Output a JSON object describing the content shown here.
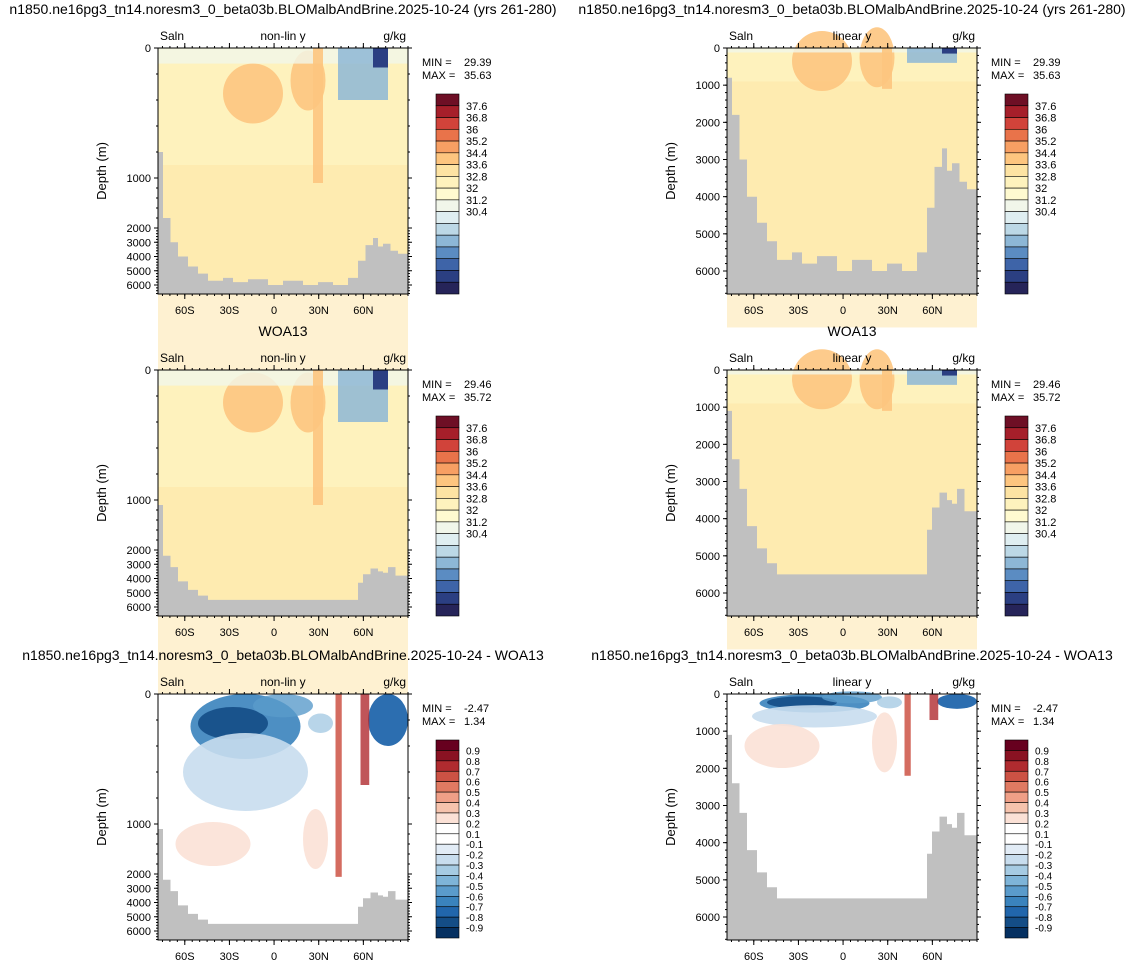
{
  "labels": {
    "depth_axis": "Depth (m)",
    "var": "Saln",
    "units": "g/kg",
    "nonlin": "non-lin y",
    "lin": "linear y",
    "min_prefix": "MIN =",
    "max_prefix": "MAX ="
  },
  "rows": [
    {
      "title_left": "n1850.ne16pg3_tn14.noresm3_0_beta03b.BLOMalbAndBrine.2025-10-24 (yrs 261-280)",
      "title_right": "n1850.ne16pg3_tn14.noresm3_0_beta03b.BLOMalbAndBrine.2025-10-24 (yrs 261-280)",
      "min": "29.39",
      "max": "35.63",
      "scale": "abs",
      "colorbar_labels": [
        "37.6",
        "36.8",
        "36",
        "35.2",
        "34.4",
        "33.6",
        "32.8",
        "32",
        "31.2",
        "30.4"
      ]
    },
    {
      "title_left": "WOA13",
      "title_right": "WOA13",
      "min": "29.46",
      "max": "35.72",
      "scale": "abs",
      "colorbar_labels": [
        "37.6",
        "36.8",
        "36",
        "35.2",
        "34.4",
        "33.6",
        "32.8",
        "32",
        "31.2",
        "30.4"
      ]
    },
    {
      "title_left": "n1850.ne16pg3_tn14.noresm3_0_beta03b.BLOMalbAndBrine.2025-10-24 - WOA13",
      "title_right": "n1850.ne16pg3_tn14.noresm3_0_beta03b.BLOMalbAndBrine.2025-10-24 - WOA13",
      "min": "-2.47",
      "max": "1.34",
      "scale": "diff",
      "colorbar_labels": [
        "0.9",
        "0.8",
        "0.7",
        "0.6",
        "0.5",
        "0.4",
        "0.3",
        "0.2",
        "0.1",
        "-0.1",
        "-0.2",
        "-0.3",
        "-0.4",
        "-0.5",
        "-0.6",
        "-0.7",
        "-0.8",
        "-0.9"
      ]
    }
  ],
  "chart_data": {
    "type": "heatmap",
    "panels": [
      {
        "row": 1,
        "yaxis": "non-lin y",
        "min": 29.39,
        "max": 35.63
      },
      {
        "row": 1,
        "yaxis": "linear y",
        "min": 29.39,
        "max": 35.63
      },
      {
        "row": 2,
        "yaxis": "non-lin y",
        "min": 29.46,
        "max": 35.72
      },
      {
        "row": 2,
        "yaxis": "linear y",
        "min": 29.46,
        "max": 35.72
      },
      {
        "row": 3,
        "yaxis": "non-lin y",
        "min": -2.47,
        "max": 1.34
      },
      {
        "row": 3,
        "yaxis": "linear y",
        "min": -2.47,
        "max": 1.34
      }
    ],
    "x_ticks": [
      "60S",
      "30S",
      "0",
      "30N",
      "60N"
    ],
    "y_ticks_nonlin": [
      "0",
      "1000",
      "2000",
      "3000",
      "4000",
      "5000",
      "6000"
    ],
    "y_ticks_linear": [
      "0",
      "1000",
      "2000",
      "3000",
      "4000",
      "5000",
      "6000"
    ],
    "xlabel": "",
    "ylabel": "Depth (m)",
    "units": "g/kg",
    "colorbar_abs": [
      30.4,
      31.2,
      32,
      32.8,
      33.6,
      34.4,
      35.2,
      36,
      36.8,
      37.6
    ],
    "colorbar_diff": [
      -0.9,
      -0.8,
      -0.7,
      -0.6,
      -0.5,
      -0.4,
      -0.3,
      -0.2,
      -0.1,
      0.1,
      0.2,
      0.3,
      0.4,
      0.5,
      0.6,
      0.7,
      0.8,
      0.9
    ]
  },
  "colors": {
    "land": "#c0c0c0",
    "abs_ramp": [
      "#262459",
      "#2b3f82",
      "#3e64a8",
      "#5b8cc2",
      "#8db7d6",
      "#bcd8e6",
      "#dfeef1",
      "#f1f6ea",
      "#fffad0",
      "#fef2bd",
      "#fde3a3",
      "#fdc57f",
      "#f79f63",
      "#e9734a",
      "#d1433a",
      "#a61f2a",
      "#6e0f25"
    ],
    "diff_ramp": [
      "#053061",
      "#144d86",
      "#2166ac",
      "#3a83bd",
      "#5a9bcb",
      "#7eb4d8",
      "#a6cbe3",
      "#c8ddee",
      "#e2ecf6",
      "#ffffff",
      "#ffffff",
      "#fbe1d6",
      "#f6c3ad",
      "#ef9f87",
      "#e07a62",
      "#cc5244",
      "#b02b2f",
      "#8a1222",
      "#67001f"
    ]
  }
}
